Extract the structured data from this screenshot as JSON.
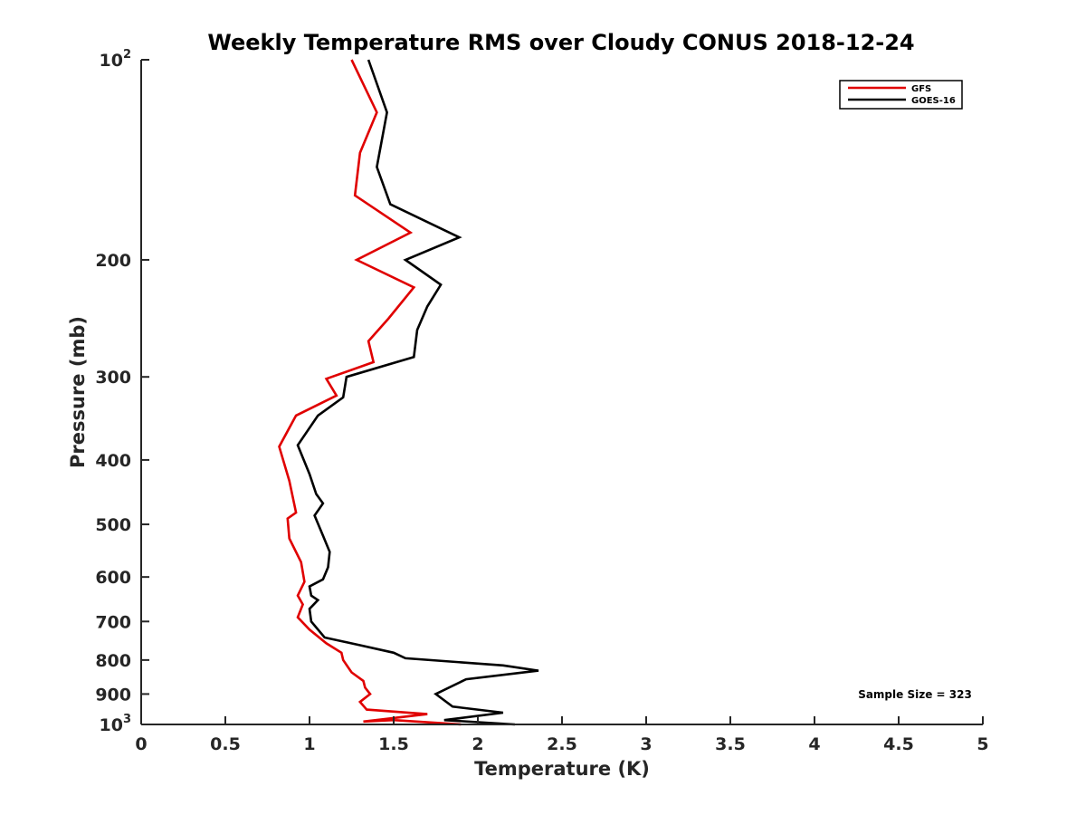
{
  "chart_data": {
    "type": "line",
    "title": "Weekly Temperature RMS over Cloudy CONUS 2018-12-24",
    "xlabel": "Temperature (K)",
    "ylabel": "Pressure (mb)",
    "xlim": [
      0,
      5
    ],
    "ylim": [
      100,
      1000
    ],
    "y_scale": "log",
    "y_reversed": true,
    "grid": false,
    "legend_position": "top-right",
    "x_ticks": [
      "0",
      "0.5",
      "1",
      "1.5",
      "2",
      "2.5",
      "3",
      "3.5",
      "4",
      "4.5",
      "5"
    ],
    "y_ticks": [
      {
        "value": 100,
        "base": "10",
        "exp": "2"
      },
      {
        "value": 200,
        "text": "200"
      },
      {
        "value": 300,
        "text": "300"
      },
      {
        "value": 400,
        "text": "400"
      },
      {
        "value": 500,
        "text": "500"
      },
      {
        "value": 600,
        "text": "600"
      },
      {
        "value": 700,
        "text": "700"
      },
      {
        "value": 800,
        "text": "800"
      },
      {
        "value": 900,
        "text": "900"
      },
      {
        "value": 1000,
        "base": "10",
        "exp": "3"
      }
    ],
    "annotation": "Sample Size = 323",
    "series": [
      {
        "name": "GFS",
        "color": "#e00000",
        "points": [
          [
            1.25,
            100
          ],
          [
            1.4,
            120
          ],
          [
            1.3,
            138
          ],
          [
            1.27,
            160
          ],
          [
            1.6,
            182
          ],
          [
            1.28,
            200
          ],
          [
            1.62,
            220
          ],
          [
            1.47,
            245
          ],
          [
            1.35,
            265
          ],
          [
            1.38,
            285
          ],
          [
            1.1,
            302
          ],
          [
            1.16,
            320
          ],
          [
            0.92,
            343
          ],
          [
            0.82,
            382
          ],
          [
            0.88,
            430
          ],
          [
            0.92,
            480
          ],
          [
            0.87,
            490
          ],
          [
            0.88,
            525
          ],
          [
            0.95,
            570
          ],
          [
            0.97,
            610
          ],
          [
            0.93,
            640
          ],
          [
            0.96,
            660
          ],
          [
            0.93,
            690
          ],
          [
            1.0,
            720
          ],
          [
            1.1,
            755
          ],
          [
            1.19,
            780
          ],
          [
            1.2,
            800
          ],
          [
            1.25,
            835
          ],
          [
            1.32,
            860
          ],
          [
            1.33,
            880
          ],
          [
            1.36,
            900
          ],
          [
            1.3,
            925
          ],
          [
            1.34,
            950
          ],
          [
            1.7,
            965
          ],
          [
            1.32,
            990
          ],
          [
            1.5,
            985
          ],
          [
            1.9,
            1000
          ]
        ]
      },
      {
        "name": "GOES-16",
        "color": "#000000",
        "points": [
          [
            1.35,
            100
          ],
          [
            1.46,
            120
          ],
          [
            1.4,
            145
          ],
          [
            1.48,
            165
          ],
          [
            1.89,
            185
          ],
          [
            1.57,
            200
          ],
          [
            1.78,
            218
          ],
          [
            1.7,
            235
          ],
          [
            1.64,
            255
          ],
          [
            1.62,
            280
          ],
          [
            1.22,
            300
          ],
          [
            1.2,
            322
          ],
          [
            1.05,
            343
          ],
          [
            0.93,
            380
          ],
          [
            1.0,
            420
          ],
          [
            1.04,
            450
          ],
          [
            1.08,
            465
          ],
          [
            1.03,
            485
          ],
          [
            1.08,
            520
          ],
          [
            1.12,
            550
          ],
          [
            1.11,
            580
          ],
          [
            1.08,
            605
          ],
          [
            1.0,
            620
          ],
          [
            1.01,
            640
          ],
          [
            1.05,
            650
          ],
          [
            1.0,
            670
          ],
          [
            1.01,
            700
          ],
          [
            1.09,
            740
          ],
          [
            1.3,
            760
          ],
          [
            1.5,
            780
          ],
          [
            1.57,
            795
          ],
          [
            2.15,
            815
          ],
          [
            2.36,
            830
          ],
          [
            1.93,
            855
          ],
          [
            1.75,
            900
          ],
          [
            1.85,
            940
          ],
          [
            2.15,
            960
          ],
          [
            1.8,
            985
          ],
          [
            2.22,
            1000
          ]
        ]
      }
    ]
  }
}
